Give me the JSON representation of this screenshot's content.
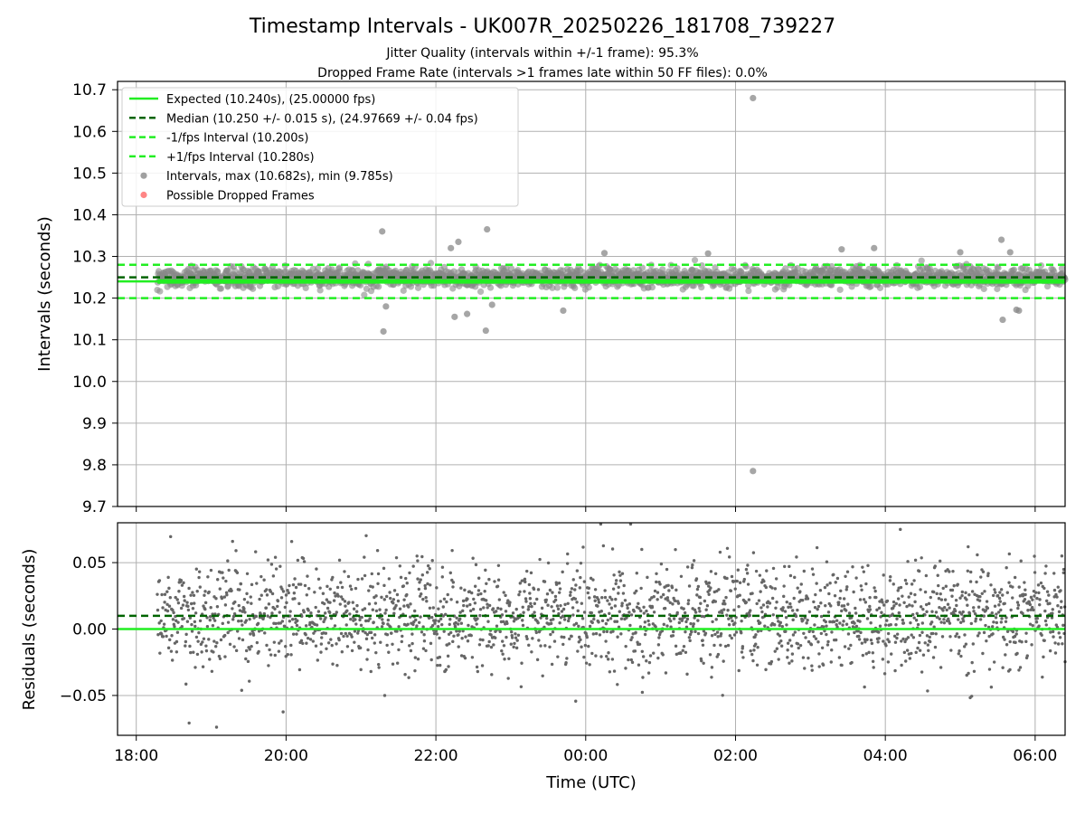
{
  "title": "Timestamp Intervals - UK007R_20250226_181708_739227",
  "subtitle_1": "Jitter Quality (intervals within +/-1 frame): 95.3%",
  "subtitle_2": "Dropped Frame Rate (intervals >1 frames late within 50 FF files): 0.0%",
  "colors": {
    "expected": "#22ee22",
    "median": "#006400",
    "interval_points": "#888888",
    "residual_points": "#666666",
    "dropped": "#ff6666",
    "grid": "#b0b0b0"
  },
  "chart_data": [
    {
      "type": "scatter",
      "panel": "intervals",
      "ylabel": "Intervals (seconds)",
      "xlim": [
        "17:45",
        "06:24"
      ],
      "ylim": [
        9.7,
        10.72
      ],
      "yticks": [
        "9.7",
        "9.8",
        "9.9",
        "10.0",
        "10.1",
        "10.2",
        "10.3",
        "10.4",
        "10.5",
        "10.6",
        "10.7"
      ],
      "xticks": [
        "18:00",
        "20:00",
        "22:00",
        "00:00",
        "02:00",
        "04:00",
        "06:00"
      ],
      "grid": true,
      "legend_position": "top-left",
      "data_start": "18:17",
      "data_end": "06:24",
      "lines": [
        {
          "name": "Expected (10.240s), (25.00000 fps)",
          "y": 10.24,
          "style": "solid",
          "color": "#22ee22"
        },
        {
          "name": "Median (10.250 +/- 0.015 s), (24.97669 +/- 0.04 fps)",
          "y": 10.25,
          "style": "dashed",
          "color": "#006400"
        },
        {
          "name": "-1/fps Interval (10.200s)",
          "y": 10.2,
          "style": "dashed",
          "color": "#22ee22"
        },
        {
          "name": "+1/fps Interval (10.280s)",
          "y": 10.28,
          "style": "dashed",
          "color": "#22ee22"
        }
      ],
      "scatter_series": [
        {
          "name": "Intervals, max (10.682s), min (9.785s)",
          "color": "#888888"
        },
        {
          "name": "Possible Dropped Frames",
          "color": "#ff6666",
          "count": 0
        }
      ],
      "interval_stats": {
        "median": 10.25,
        "std": 0.015,
        "max": 10.682,
        "min": 9.785,
        "within_1_frame_pct": 95.3
      },
      "outliers": [
        {
          "x": "21:17",
          "y": 10.36
        },
        {
          "x": "21:18",
          "y": 10.12
        },
        {
          "x": "21:20",
          "y": 10.18
        },
        {
          "x": "22:12",
          "y": 10.32
        },
        {
          "x": "22:18",
          "y": 10.335
        },
        {
          "x": "22:41",
          "y": 10.365
        },
        {
          "x": "22:40",
          "y": 10.122
        },
        {
          "x": "22:15",
          "y": 10.155
        },
        {
          "x": "22:25",
          "y": 10.162
        },
        {
          "x": "22:45",
          "y": 10.184
        },
        {
          "x": "23:42",
          "y": 10.17
        },
        {
          "x": "00:15",
          "y": 10.308
        },
        {
          "x": "01:38",
          "y": 10.307
        },
        {
          "x": "03:25",
          "y": 10.317
        },
        {
          "x": "03:51",
          "y": 10.32
        },
        {
          "x": "05:00",
          "y": 10.31
        },
        {
          "x": "05:33",
          "y": 10.34
        },
        {
          "x": "05:40",
          "y": 10.31
        },
        {
          "x": "05:34",
          "y": 10.148
        },
        {
          "x": "05:45",
          "y": 10.172
        },
        {
          "x": "05:47",
          "y": 10.17
        },
        {
          "x": "02:14",
          "y": 10.68
        },
        {
          "x": "02:14",
          "y": 9.785
        }
      ]
    },
    {
      "type": "scatter",
      "panel": "residuals",
      "ylabel": "Residuals (seconds)",
      "xlabel": "Time (UTC)",
      "xlim": [
        "17:45",
        "06:24"
      ],
      "ylim": [
        -0.08,
        0.08
      ],
      "yticks": [
        "−0.05",
        "0.00",
        "0.05"
      ],
      "ytick_values": [
        -0.05,
        0.0,
        0.05
      ],
      "xticks": [
        "18:00",
        "20:00",
        "22:00",
        "00:00",
        "02:00",
        "04:00",
        "06:00"
      ],
      "grid": true,
      "lines": [
        {
          "y": 0.0,
          "style": "solid",
          "color": "#22ee22"
        },
        {
          "y": 0.01,
          "style": "dashed",
          "color": "#006400"
        }
      ],
      "residual_stats": {
        "center": 0.01,
        "spread": 0.02,
        "range": [
          -0.08,
          0.08
        ]
      }
    }
  ]
}
